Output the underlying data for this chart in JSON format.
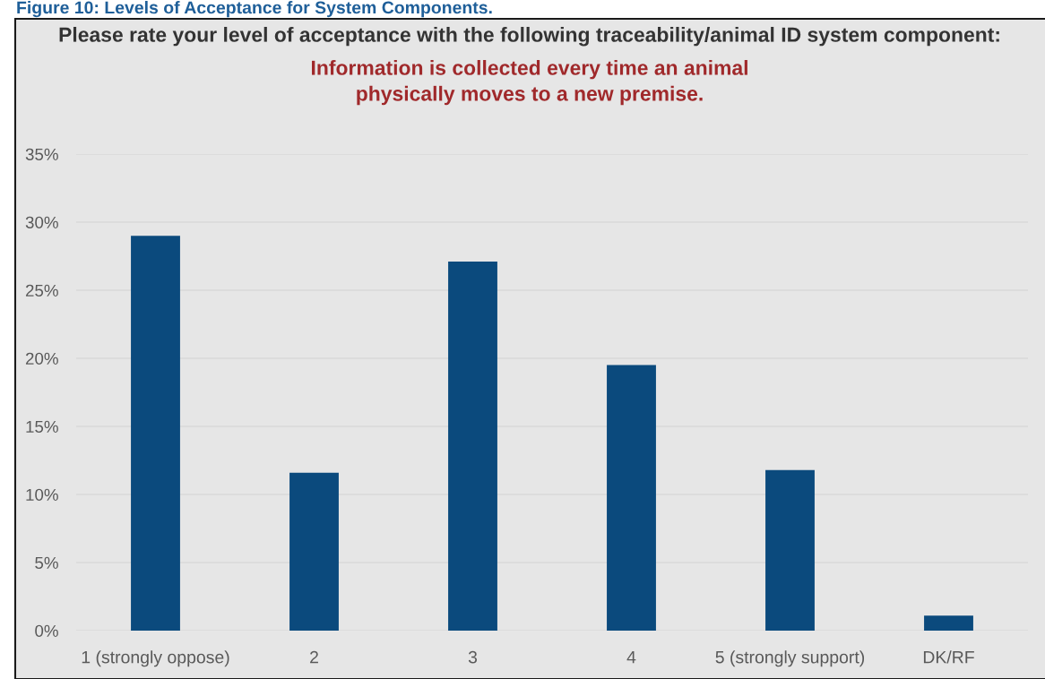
{
  "chart_data": {
    "type": "bar",
    "title": "Please rate your level of acceptance with the following traceability/animal ID system component:",
    "subtitle": "Information is collected every time an animal\nphysically moves to a new premise.",
    "annotations": [
      "Figure 10: Levels of Acceptance for System Components."
    ],
    "categories": [
      "1 (strongly oppose)",
      "2",
      "3",
      "4",
      "5 (strongly support)",
      "DK/RF"
    ],
    "values": [
      29.0,
      11.6,
      27.1,
      19.5,
      11.8,
      1.1
    ],
    "color": "#0b4a7d",
    "ylim": [
      0,
      35
    ],
    "yticks": [
      {
        "value": 0,
        "label": "0%"
      },
      {
        "value": 5,
        "label": "5%"
      },
      {
        "value": 10,
        "label": "10%"
      },
      {
        "value": 15,
        "label": "15%"
      },
      {
        "value": 20,
        "label": "20%"
      },
      {
        "value": 25,
        "label": "25%"
      },
      {
        "value": 30,
        "label": "30%"
      },
      {
        "value": 35,
        "label": "35%"
      }
    ],
    "grid": "y"
  }
}
